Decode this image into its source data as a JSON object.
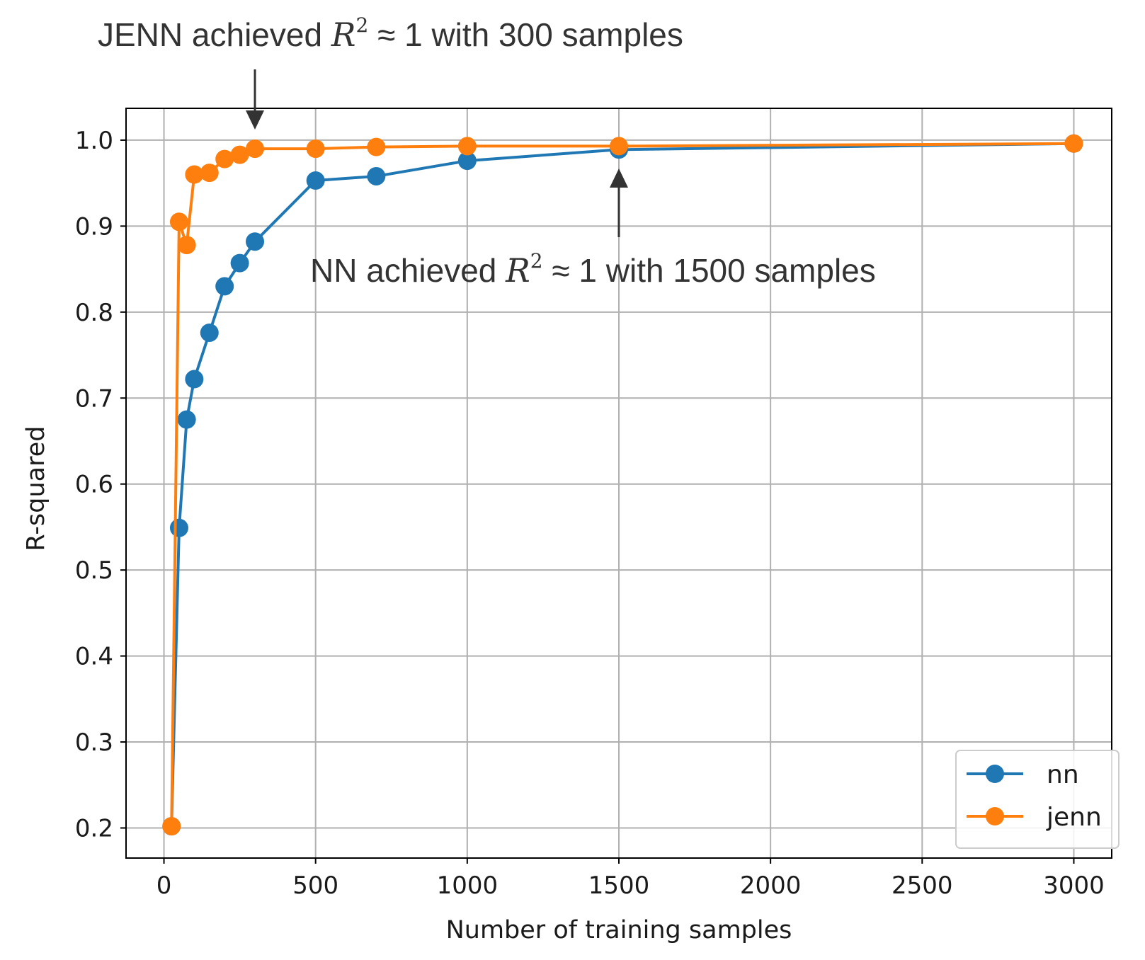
{
  "chart_data": {
    "type": "line",
    "title": "",
    "xlabel": "Number of training samples",
    "ylabel": "R-squared",
    "xlim": [
      -125,
      3125
    ],
    "ylim": [
      0.165,
      1.037
    ],
    "xticks": [
      0,
      500,
      1000,
      1500,
      2000,
      2500,
      3000
    ],
    "yticks": [
      0.2,
      0.3,
      0.4,
      0.5,
      0.6,
      0.7,
      0.8,
      0.9,
      1.0
    ],
    "xtick_labels": [
      "0",
      "500",
      "1000",
      "1500",
      "2000",
      "2500",
      "3000"
    ],
    "ytick_labels": [
      "0.2",
      "0.3",
      "0.4",
      "0.5",
      "0.6",
      "0.7",
      "0.8",
      "0.9",
      "1.0"
    ],
    "grid": true,
    "legend_position": "lower-right",
    "series": [
      {
        "name": "nn",
        "color": "#1f77b4",
        "x": [
          25,
          50,
          75,
          100,
          150,
          200,
          250,
          300,
          500,
          700,
          1000,
          1500,
          3000
        ],
        "y": [
          0.202,
          0.549,
          0.675,
          0.722,
          0.776,
          0.83,
          0.857,
          0.882,
          0.953,
          0.958,
          0.976,
          0.989,
          0.996
        ]
      },
      {
        "name": "jenn",
        "color": "#ff7f0e",
        "x": [
          25,
          50,
          75,
          100,
          150,
          200,
          250,
          300,
          500,
          700,
          1000,
          1500,
          3000
        ],
        "y": [
          0.202,
          0.905,
          0.878,
          0.96,
          0.962,
          0.978,
          0.983,
          0.99,
          0.99,
          0.992,
          0.993,
          0.993,
          0.996
        ]
      }
    ]
  },
  "annotations": {
    "jenn": {
      "prefix": "JENN achieved ",
      "symbol": "R",
      "exponent": "2",
      "suffix": " ≈ 1 with 300 samples",
      "arrow_x": 300,
      "arrow_dir": "down"
    },
    "nn": {
      "prefix": "NN achieved ",
      "symbol": "R",
      "exponent": "2",
      "suffix": " ≈ 1 with 1500 samples",
      "arrow_x": 1500,
      "arrow_dir": "up"
    }
  }
}
